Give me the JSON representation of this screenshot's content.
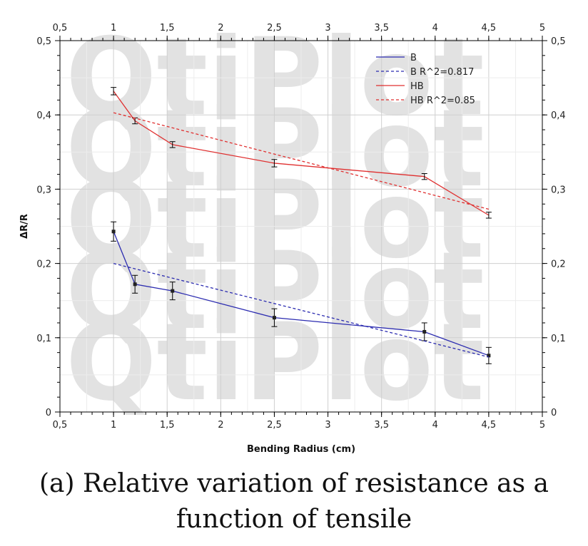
{
  "caption": {
    "line1": "(a) Relative variation of resistance as a",
    "line2": "function of tensile"
  },
  "watermark": {
    "text": "QtiPlot"
  },
  "chart_data": {
    "type": "line",
    "xlabel": "Bending Radius (cm)",
    "ylabel": "ΔR/R",
    "xlim": [
      0.5,
      5
    ],
    "ylim": [
      0,
      0.5
    ],
    "grid": true,
    "legend_position": "top-right",
    "x_ticks": [
      "0,5",
      "1",
      "1,5",
      "2",
      "2,5",
      "3",
      "3,5",
      "4",
      "4,5",
      "5"
    ],
    "y_ticks": [
      "0",
      "0,1",
      "0,2",
      "0,3",
      "0,4",
      "0,5"
    ],
    "series": [
      {
        "name": "B",
        "style": "solid",
        "color": "#2b2bb0",
        "x": [
          1,
          1.2,
          1.55,
          2.5,
          3.9,
          4.5
        ],
        "y": [
          0.243,
          0.172,
          0.163,
          0.127,
          0.108,
          0.076
        ],
        "error": [
          0.013,
          0.012,
          0.012,
          0.012,
          0.012,
          0.011
        ],
        "markers": true
      },
      {
        "name": "B R^2=0.817",
        "style": "dashed",
        "color": "#2b2bb0",
        "x": [
          1,
          4.5
        ],
        "y": [
          0.2,
          0.074
        ]
      },
      {
        "name": "HB",
        "style": "solid",
        "color": "#e03030",
        "x": [
          1,
          1.2,
          1.55,
          2.5,
          3.9,
          4.5
        ],
        "y": [
          0.432,
          0.392,
          0.36,
          0.335,
          0.317,
          0.265
        ],
        "error": [
          0.005,
          0.004,
          0.004,
          0.005,
          0.004,
          0.004
        ],
        "markers": false
      },
      {
        "name": "HB R^2=0.85",
        "style": "dashed",
        "color": "#e03030",
        "x": [
          1,
          4.5
        ],
        "y": [
          0.403,
          0.273
        ]
      }
    ]
  }
}
